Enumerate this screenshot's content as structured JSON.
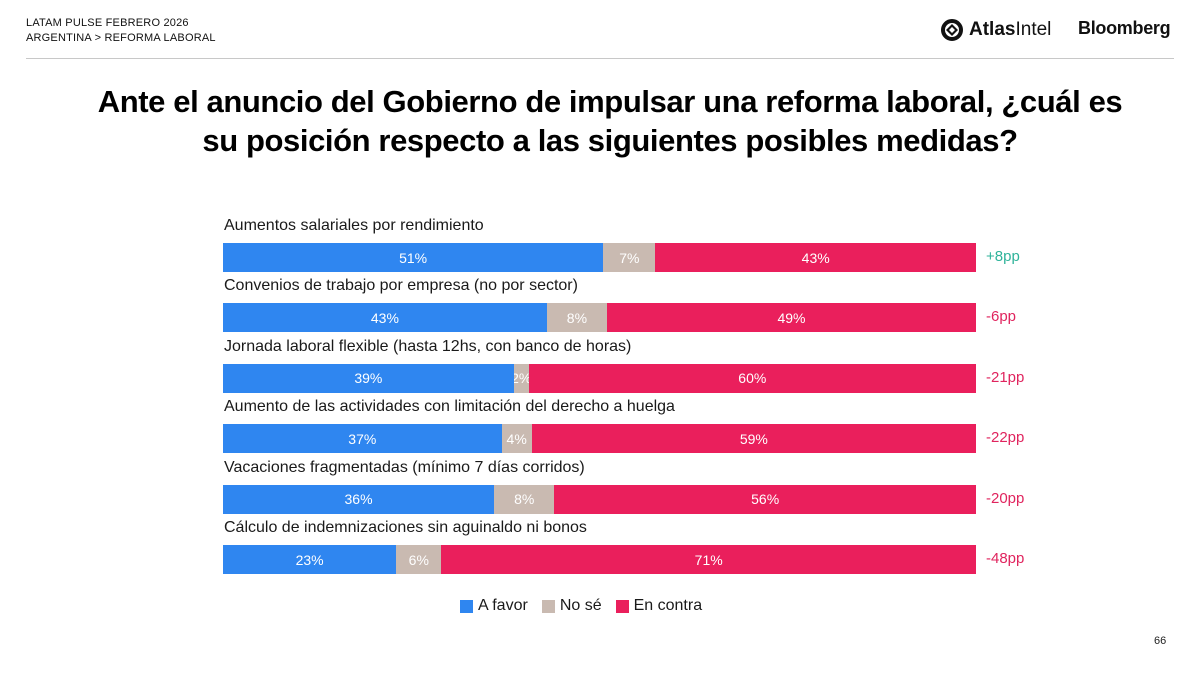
{
  "header": {
    "line1": "LATAM PULSE FEBRERO 2026",
    "line2": "ARGENTINA > REFORMA LABORAL",
    "atlas_bold": "Atlas",
    "atlas_rest": "Intel",
    "bloomberg": "Bloomberg"
  },
  "title": {
    "line1": "Ante el anuncio del Gobierno de impulsar una reforma laboral, ¿cuál es",
    "line2": "su posición respecto a las siguientes posibles medidas?"
  },
  "colors": {
    "favor": "#2f86f0",
    "nose": "#c9bab1",
    "contra": "#ea1f5c",
    "net_positive": "#2fb39a",
    "net_negative": "#e0245e"
  },
  "chart_data": {
    "type": "bar",
    "orientation": "horizontal-stacked",
    "categories": [
      "Aumentos salariales por rendimiento",
      "Convenios de trabajo por empresa (no por sector)",
      "Jornada laboral flexible (hasta 12hs, con banco de horas)",
      "Aumento de las actividades con limitación del derecho a huelga",
      "Vacaciones fragmentadas (mínimo 7 días corridos)",
      "Cálculo de indemnizaciones sin aguinaldo ni bonos"
    ],
    "series": [
      {
        "name": "A favor",
        "values": [
          51,
          43,
          39,
          37,
          36,
          23
        ]
      },
      {
        "name": "No sé",
        "values": [
          7,
          8,
          2,
          4,
          8,
          6
        ]
      },
      {
        "name": "En contra",
        "values": [
          43,
          49,
          60,
          59,
          56,
          71
        ]
      }
    ],
    "net_labels": [
      "+8pp",
      "-6pp",
      "-21pp",
      "-22pp",
      "-20pp",
      "-48pp"
    ],
    "value_suffix": "%",
    "legend": [
      "A favor",
      "No sé",
      "En contra"
    ],
    "legend_position": "bottom-center"
  },
  "page_number": "66"
}
